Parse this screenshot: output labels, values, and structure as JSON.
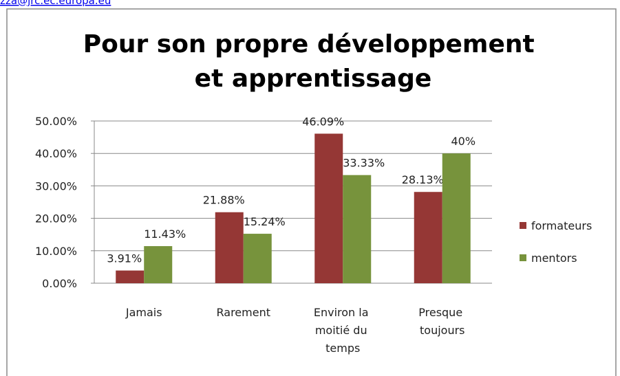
{
  "link": "izza@jrc.ec.europa.eu",
  "chart_data": {
    "type": "bar",
    "title": "Pour son propre développement et apprentissage",
    "categories": [
      "Jamais",
      "Rarement",
      "Environ la moitié du temps",
      "Presque toujours"
    ],
    "series": [
      {
        "name": "formateurs",
        "color": "#953735",
        "values": [
          3.91,
          21.88,
          46.09,
          28.13
        ],
        "value_labels": [
          "3.91%",
          "21.88%",
          "46.09%",
          "28.13%"
        ]
      },
      {
        "name": "mentors",
        "color": "#77933c",
        "values": [
          11.43,
          15.24,
          33.33,
          40
        ],
        "value_labels": [
          "11.43%",
          "15.24%",
          "33.33%",
          "40%"
        ]
      }
    ],
    "ylim": [
      0,
      50
    ],
    "yticks": [
      {
        "value": 0,
        "label": "0.00%"
      },
      {
        "value": 10,
        "label": "10.00%"
      },
      {
        "value": 20,
        "label": "20.00%"
      },
      {
        "value": 30,
        "label": "30.00%"
      },
      {
        "value": 40,
        "label": "40.00%"
      },
      {
        "value": 50,
        "label": "50.00%"
      }
    ],
    "grid": true,
    "legend": "right"
  }
}
